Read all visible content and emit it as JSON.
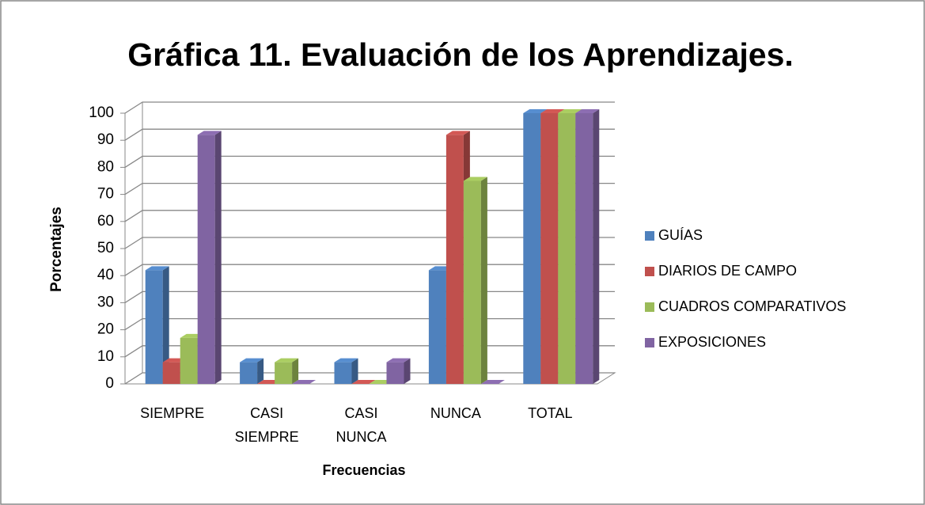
{
  "chart_data": {
    "type": "bar3d",
    "title": "Gráfica 11. Evaluación de los Aprendizajes.",
    "x_label": "Frecuencias",
    "y_label": "Porcentajes",
    "categories": [
      "SIEMPRE",
      "CASI SIEMPRE",
      "CASI NUNCA",
      "NUNCA",
      "TOTAL"
    ],
    "series": [
      {
        "name": "GUÍAS",
        "color": "#4f81bd",
        "values": [
          42,
          8,
          8,
          42,
          100
        ]
      },
      {
        "name": "DIARIOS DE CAMPO",
        "color": "#c0504d",
        "values": [
          8,
          0,
          0,
          92,
          100
        ]
      },
      {
        "name": "CUADROS COMPARATIVOS",
        "color": "#9bbb59",
        "values": [
          17,
          8,
          0,
          75,
          100
        ]
      },
      {
        "name": "EXPOSICIONES",
        "color": "#8064a2",
        "values": [
          92,
          0,
          8,
          0,
          100
        ]
      }
    ],
    "ylim": [
      0,
      100
    ],
    "yticks": [
      0,
      10,
      20,
      30,
      40,
      50,
      60,
      70,
      80,
      90,
      100
    ],
    "grid": true,
    "legend": "right"
  }
}
